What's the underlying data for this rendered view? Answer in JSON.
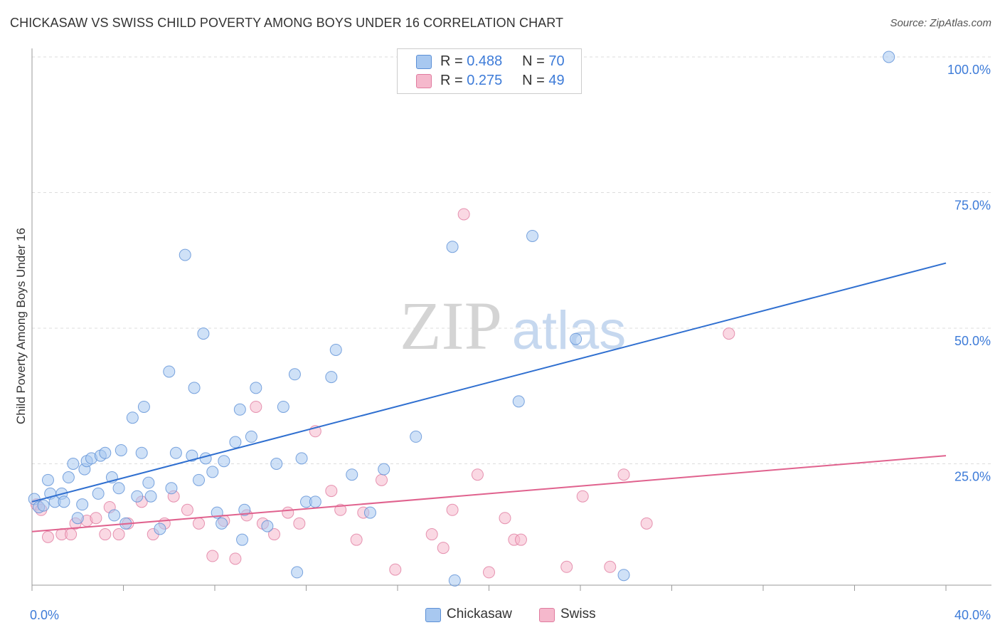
{
  "header": {
    "title": "CHICKASAW VS SWISS CHILD POVERTY AMONG BOYS UNDER 16 CORRELATION CHART",
    "source": "Source: ZipAtlas.com"
  },
  "watermark": {
    "part1": "ZIP",
    "part2": "atlas"
  },
  "legend": {
    "items": [
      {
        "r_label": "R =",
        "r_value": "0.488",
        "n_label": "N =",
        "n_value": "70"
      },
      {
        "r_label": "R =",
        "r_value": "0.275",
        "n_label": "N =",
        "n_value": "49"
      }
    ]
  },
  "chart_data": {
    "type": "scatter",
    "title": "CHICKASAW VS SWISS CHILD POVERTY AMONG BOYS UNDER 16 CORRELATION CHART",
    "xlabel": "",
    "ylabel": "Child Poverty Among Boys Under 16",
    "xlim": [
      0,
      40
    ],
    "ylim": [
      0,
      100
    ],
    "x_tick_labels": [
      "0.0%",
      "40.0%"
    ],
    "y_tick_labels": [
      "25.0%",
      "50.0%",
      "75.0%",
      "100.0%"
    ],
    "y_ticks": [
      25,
      50,
      75,
      100
    ],
    "grid": true,
    "colors": {
      "chickasaw_fill": "#a8c8f0",
      "chickasaw_stroke": "#5b8fd6",
      "chickasaw_line": "#2f6fd0",
      "swiss_fill": "#f5b8cc",
      "swiss_stroke": "#e07b9f",
      "swiss_line": "#e0628e",
      "tick_label": "#3d7bd8"
    },
    "series": [
      {
        "name": "Chickasaw",
        "r": 0.488,
        "n": 70,
        "trend": {
          "x0": 0,
          "y0": 18.0,
          "x1": 40,
          "y1": 62.0
        },
        "points": [
          [
            0.1,
            18.5
          ],
          [
            0.3,
            17.0
          ],
          [
            0.5,
            17.3
          ],
          [
            0.7,
            22.0
          ],
          [
            0.8,
            19.5
          ],
          [
            1.0,
            18.0
          ],
          [
            1.3,
            19.5
          ],
          [
            1.4,
            18.0
          ],
          [
            1.6,
            22.5
          ],
          [
            1.8,
            25.0
          ],
          [
            2.0,
            15.0
          ],
          [
            2.2,
            17.5
          ],
          [
            2.3,
            24.0
          ],
          [
            2.4,
            25.5
          ],
          [
            2.6,
            26.0
          ],
          [
            2.9,
            19.5
          ],
          [
            3.0,
            26.5
          ],
          [
            3.2,
            27.0
          ],
          [
            3.5,
            22.5
          ],
          [
            3.6,
            15.5
          ],
          [
            3.8,
            20.5
          ],
          [
            3.9,
            27.5
          ],
          [
            4.1,
            14.0
          ],
          [
            4.4,
            33.5
          ],
          [
            4.6,
            19.0
          ],
          [
            4.8,
            27.0
          ],
          [
            4.9,
            35.5
          ],
          [
            5.1,
            21.5
          ],
          [
            5.2,
            19.0
          ],
          [
            5.6,
            13.0
          ],
          [
            6.0,
            42.0
          ],
          [
            6.1,
            20.5
          ],
          [
            6.3,
            27.0
          ],
          [
            6.7,
            63.5
          ],
          [
            7.0,
            26.5
          ],
          [
            7.1,
            39.0
          ],
          [
            7.3,
            22.0
          ],
          [
            7.5,
            49.0
          ],
          [
            7.6,
            26.0
          ],
          [
            7.9,
            23.5
          ],
          [
            8.1,
            16.0
          ],
          [
            8.3,
            14.0
          ],
          [
            8.4,
            25.5
          ],
          [
            8.9,
            29.0
          ],
          [
            9.1,
            35.0
          ],
          [
            9.2,
            11.0
          ],
          [
            9.3,
            16.5
          ],
          [
            9.6,
            30.0
          ],
          [
            9.8,
            39.0
          ],
          [
            10.3,
            13.5
          ],
          [
            10.7,
            25.0
          ],
          [
            11.0,
            35.5
          ],
          [
            11.5,
            41.5
          ],
          [
            11.8,
            26.0
          ],
          [
            12.0,
            18.0
          ],
          [
            11.6,
            5.0
          ],
          [
            12.4,
            18.0
          ],
          [
            13.1,
            41.0
          ],
          [
            13.3,
            46.0
          ],
          [
            14.0,
            23.0
          ],
          [
            14.8,
            16.0
          ],
          [
            15.4,
            24.0
          ],
          [
            16.8,
            30.0
          ],
          [
            18.4,
            65.0
          ],
          [
            18.5,
            3.5
          ],
          [
            21.3,
            36.5
          ],
          [
            21.9,
            67.0
          ],
          [
            23.8,
            48.0
          ],
          [
            25.9,
            4.5
          ],
          [
            37.5,
            100.0
          ]
        ]
      },
      {
        "name": "Swiss",
        "r": 0.275,
        "n": 49,
        "trend": {
          "x0": 0,
          "y0": 12.5,
          "x1": 40,
          "y1": 26.5
        },
        "points": [
          [
            0.2,
            17.5
          ],
          [
            0.4,
            16.5
          ],
          [
            0.7,
            11.5
          ],
          [
            1.3,
            12.0
          ],
          [
            1.7,
            12.0
          ],
          [
            1.9,
            14.0
          ],
          [
            2.4,
            14.5
          ],
          [
            2.8,
            15.0
          ],
          [
            3.2,
            12.0
          ],
          [
            3.4,
            17.0
          ],
          [
            3.8,
            12.0
          ],
          [
            4.2,
            14.0
          ],
          [
            4.8,
            18.0
          ],
          [
            5.3,
            12.0
          ],
          [
            5.8,
            14.0
          ],
          [
            6.2,
            19.0
          ],
          [
            6.8,
            16.5
          ],
          [
            7.3,
            14.0
          ],
          [
            7.9,
            8.0
          ],
          [
            8.4,
            14.5
          ],
          [
            8.9,
            7.5
          ],
          [
            9.4,
            15.5
          ],
          [
            9.8,
            35.5
          ],
          [
            10.1,
            14.0
          ],
          [
            10.6,
            12.0
          ],
          [
            11.2,
            16.0
          ],
          [
            11.7,
            14.0
          ],
          [
            12.4,
            31.0
          ],
          [
            13.1,
            20.0
          ],
          [
            13.5,
            16.5
          ],
          [
            14.2,
            11.0
          ],
          [
            14.5,
            16.0
          ],
          [
            15.3,
            22.0
          ],
          [
            15.9,
            5.5
          ],
          [
            17.5,
            12.0
          ],
          [
            18.0,
            9.5
          ],
          [
            18.4,
            16.5
          ],
          [
            18.9,
            71.0
          ],
          [
            19.5,
            23.0
          ],
          [
            20.0,
            5.0
          ],
          [
            20.7,
            15.0
          ],
          [
            21.1,
            11.0
          ],
          [
            21.4,
            11.0
          ],
          [
            23.4,
            6.0
          ],
          [
            24.1,
            19.0
          ],
          [
            25.3,
            6.0
          ],
          [
            25.9,
            23.0
          ],
          [
            26.9,
            14.0
          ],
          [
            30.5,
            49.0
          ]
        ]
      }
    ]
  }
}
